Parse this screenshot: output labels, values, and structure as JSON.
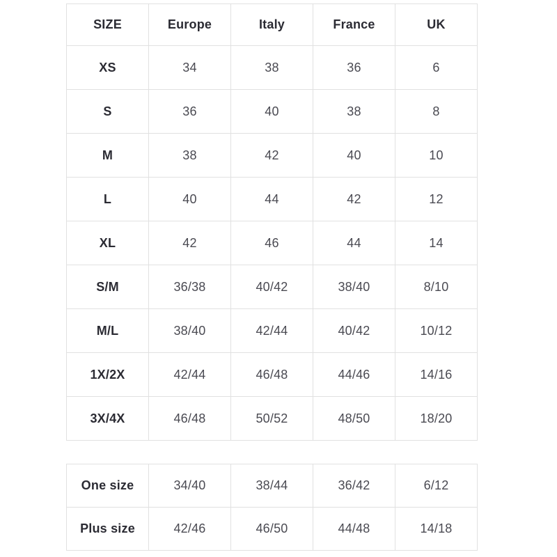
{
  "colors": {
    "background": "#ffffff",
    "border": "#e1e1e1",
    "label_text": "#2b2b33",
    "value_text": "#4a4a52"
  },
  "size_chart": {
    "headers": [
      "SIZE",
      "Europe",
      "Italy",
      "France",
      "UK"
    ],
    "rows": [
      {
        "label": "XS",
        "values": [
          "34",
          "38",
          "36",
          "6"
        ]
      },
      {
        "label": "S",
        "values": [
          "36",
          "40",
          "38",
          "8"
        ]
      },
      {
        "label": "M",
        "values": [
          "38",
          "42",
          "40",
          "10"
        ]
      },
      {
        "label": "L",
        "values": [
          "40",
          "44",
          "42",
          "12"
        ]
      },
      {
        "label": "XL",
        "values": [
          "42",
          "46",
          "44",
          "14"
        ]
      },
      {
        "label": "S/M",
        "values": [
          "36/38",
          "40/42",
          "38/40",
          "8/10"
        ]
      },
      {
        "label": "M/L",
        "values": [
          "38/40",
          "42/44",
          "40/42",
          "10/12"
        ]
      },
      {
        "label": "1X/2X",
        "values": [
          "42/44",
          "46/48",
          "44/46",
          "14/16"
        ]
      },
      {
        "label": "3X/4X",
        "values": [
          "46/48",
          "50/52",
          "48/50",
          "18/20"
        ]
      }
    ]
  },
  "special_sizes": {
    "rows": [
      {
        "label": "One size",
        "values": [
          "34/40",
          "38/44",
          "36/42",
          "6/12"
        ]
      },
      {
        "label": "Plus size",
        "values": [
          "42/46",
          "46/50",
          "44/48",
          "14/18"
        ]
      }
    ]
  }
}
